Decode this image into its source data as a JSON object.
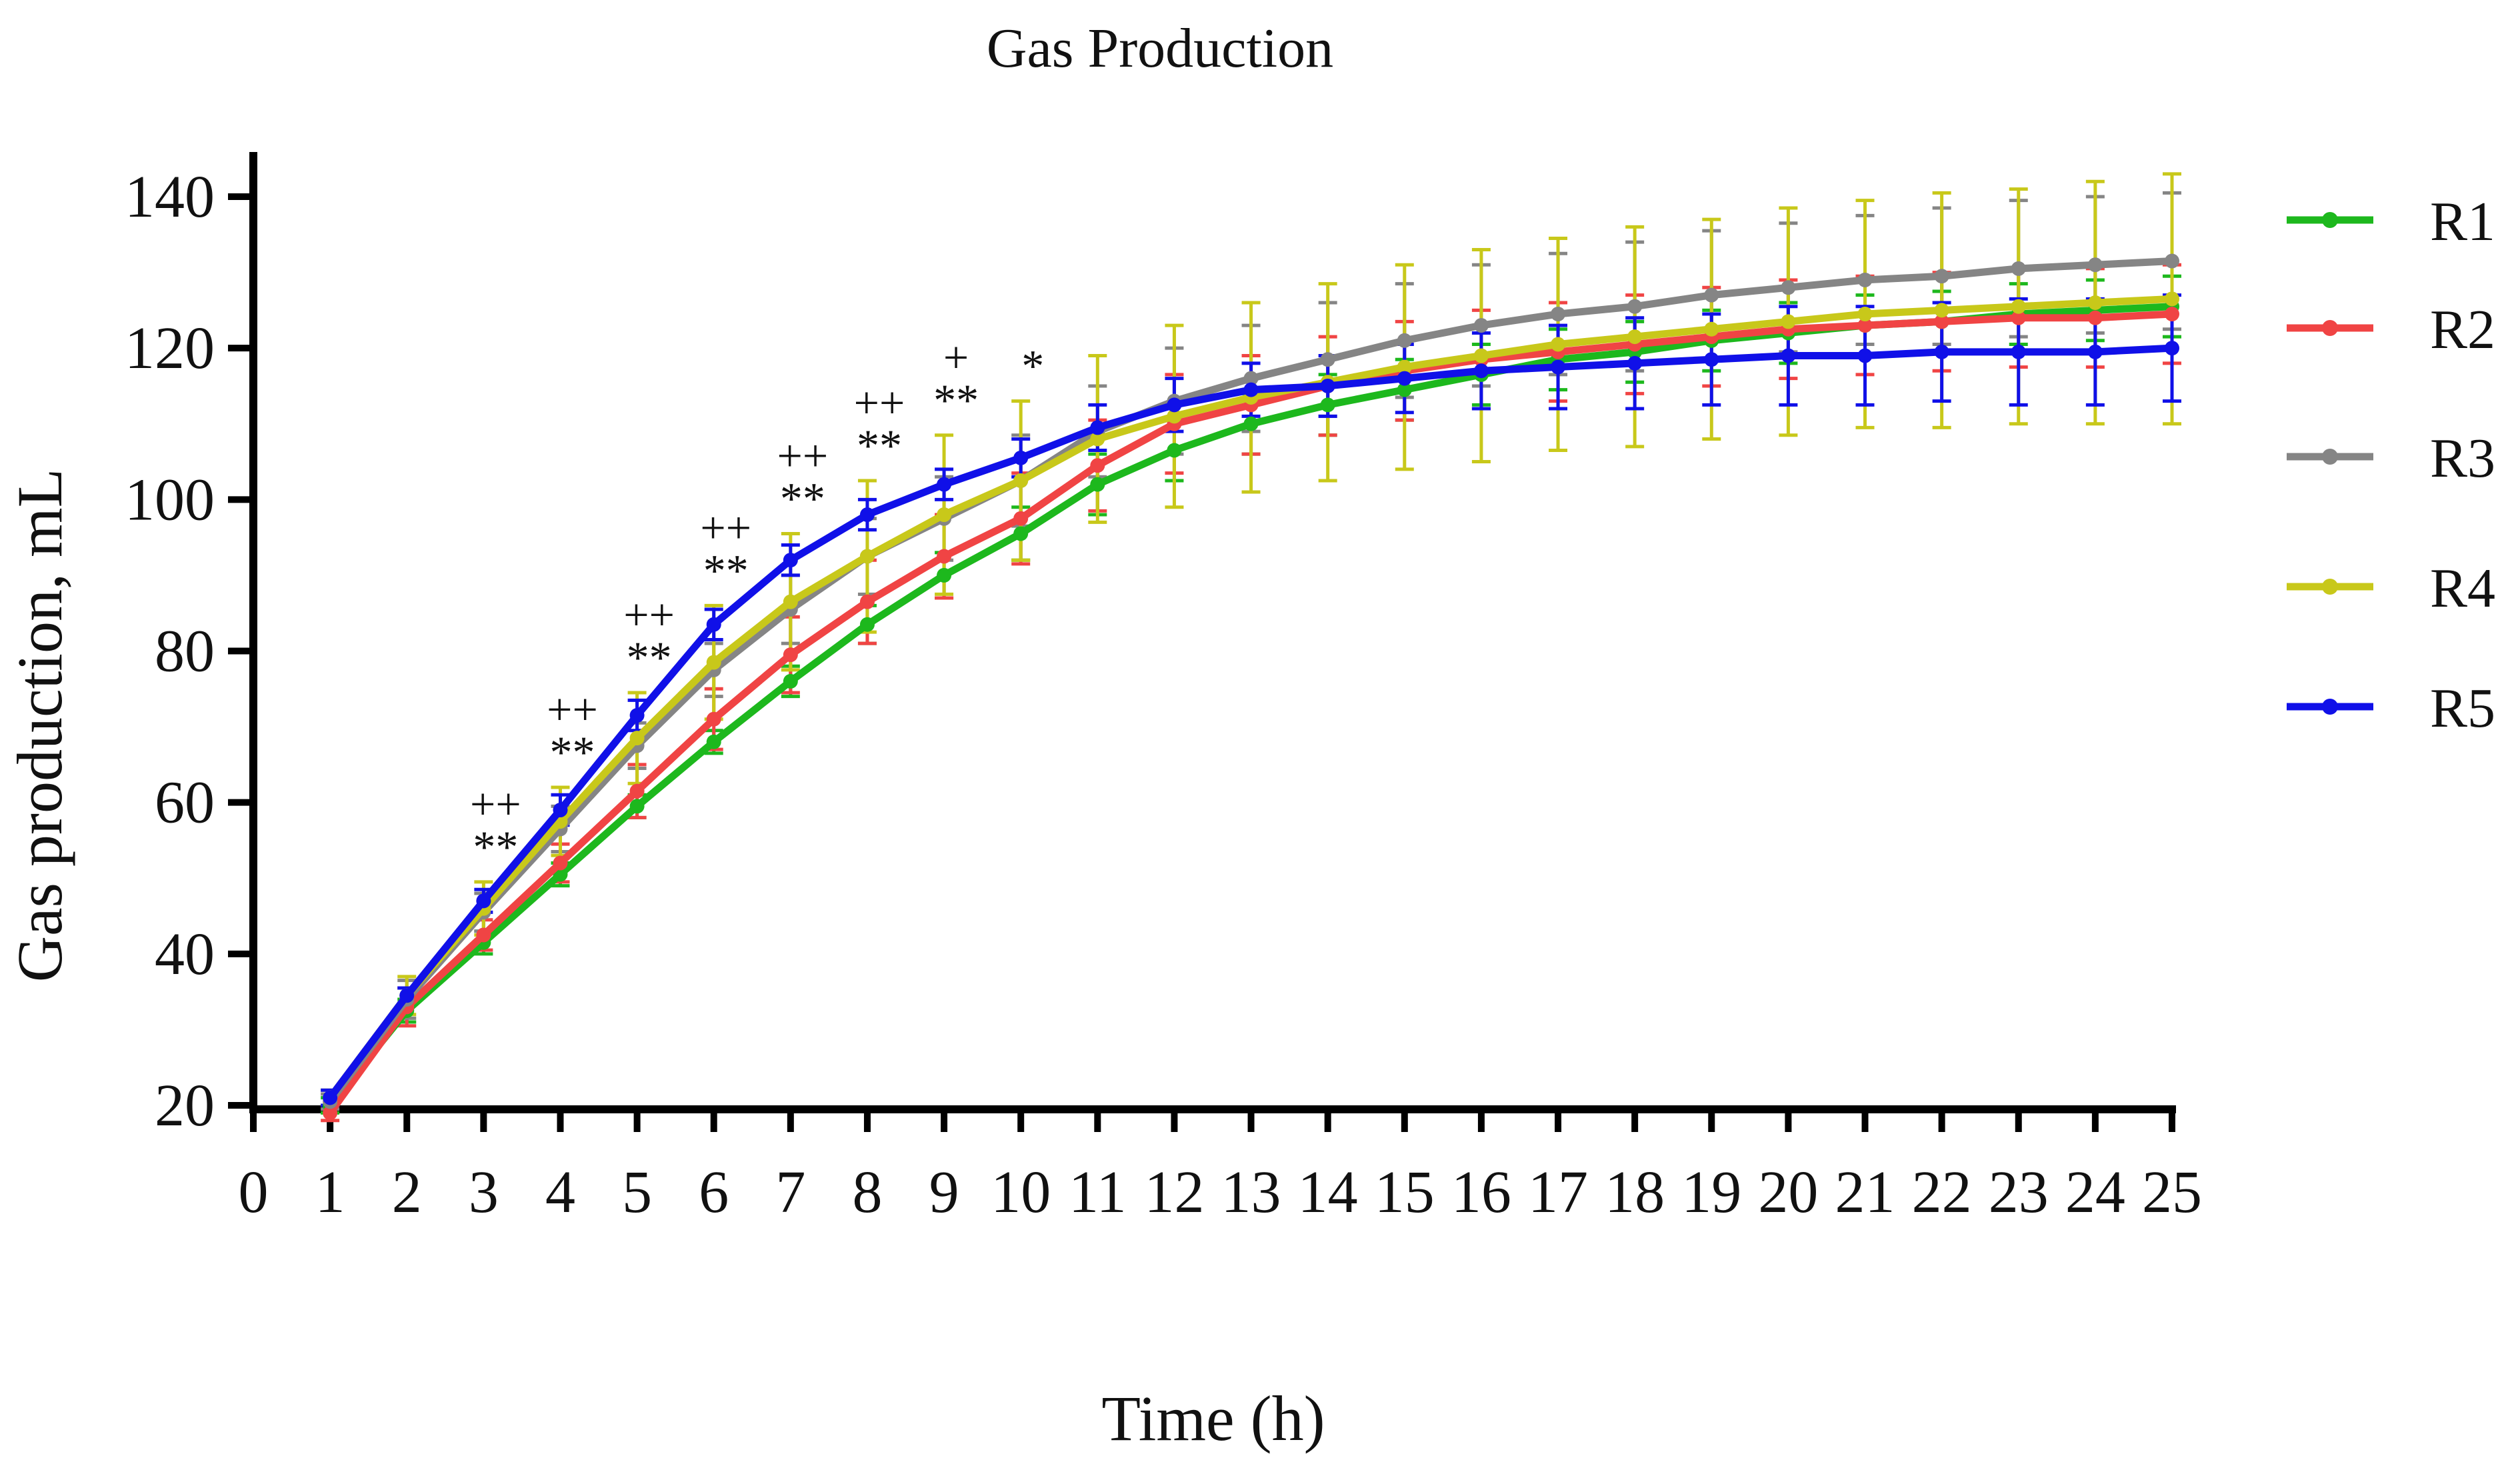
{
  "chart_data": {
    "type": "line",
    "title": "Gas Production",
    "xlabel": "Time (h)",
    "ylabel": "Gas production, mL",
    "xlim": [
      0,
      25
    ],
    "ylim": [
      20,
      140
    ],
    "xticks": [
      0,
      1,
      2,
      3,
      4,
      5,
      6,
      7,
      8,
      9,
      10,
      11,
      12,
      13,
      14,
      15,
      16,
      17,
      18,
      19,
      20,
      21,
      22,
      23,
      24,
      25
    ],
    "yticks": [
      20,
      40,
      60,
      80,
      100,
      120,
      140
    ],
    "x": [
      1,
      2,
      3,
      4,
      5,
      6,
      7,
      8,
      9,
      10,
      11,
      12,
      13,
      14,
      15,
      16,
      17,
      18,
      19,
      20,
      21,
      22,
      23,
      24,
      25
    ],
    "legend_position": "right",
    "series": [
      {
        "name": "R1",
        "color": "#1DB81D",
        "values": [
          20.0,
          32.5,
          41.5,
          50.5,
          59.5,
          68.0,
          76.0,
          83.5,
          90.0,
          95.5,
          102.0,
          106.5,
          110.0,
          112.5,
          114.5,
          116.5,
          118.5,
          119.5,
          121.0,
          122.0,
          123.0,
          123.5,
          124.5,
          125.0,
          125.5
        ],
        "errors": [
          1.0,
          1.5,
          1.5,
          1.5,
          1.5,
          1.5,
          2.0,
          2.5,
          3.0,
          3.5,
          4.0,
          4.0,
          4.0,
          4.0,
          4.0,
          4.0,
          4.0,
          4.0,
          4.0,
          4.0,
          4.0,
          4.0,
          4.0,
          4.0,
          4.0
        ]
      },
      {
        "name": "R2",
        "color": "#F04444",
        "values": [
          19.0,
          33.0,
          42.5,
          52.0,
          61.5,
          71.0,
          79.5,
          86.5,
          92.5,
          97.5,
          104.5,
          110.0,
          112.5,
          115.0,
          117.0,
          118.5,
          119.5,
          120.5,
          121.5,
          122.5,
          123.0,
          123.5,
          124.0,
          124.0,
          124.5
        ],
        "errors": [
          1.0,
          2.5,
          2.0,
          2.5,
          3.5,
          4.0,
          5.0,
          5.5,
          5.5,
          6.0,
          6.0,
          6.5,
          6.5,
          6.5,
          6.5,
          6.5,
          6.5,
          6.5,
          6.5,
          6.5,
          6.5,
          6.5,
          6.5,
          6.5,
          6.5
        ]
      },
      {
        "name": "R3",
        "color": "#858585",
        "values": [
          20.5,
          34.0,
          45.5,
          56.5,
          67.5,
          77.5,
          85.5,
          92.5,
          97.5,
          102.5,
          109.0,
          113.0,
          116.0,
          118.5,
          121.0,
          123.0,
          124.5,
          125.5,
          127.0,
          128.0,
          129.0,
          129.5,
          130.5,
          131.0,
          131.5
        ],
        "errors": [
          1.0,
          2.5,
          2.5,
          3.0,
          3.0,
          3.5,
          4.5,
          5.0,
          5.5,
          6.0,
          6.0,
          7.0,
          7.0,
          7.5,
          7.5,
          8.0,
          8.0,
          8.5,
          8.5,
          8.5,
          8.5,
          9.0,
          9.0,
          9.0,
          9.0
        ]
      },
      {
        "name": "R4",
        "color": "#C8C81A",
        "values": [
          21.0,
          34.5,
          46.0,
          57.5,
          68.5,
          78.5,
          86.5,
          92.5,
          98.0,
          102.5,
          108.0,
          111.0,
          113.5,
          115.5,
          117.5,
          119.0,
          120.5,
          121.5,
          122.5,
          123.5,
          124.5,
          125.0,
          125.5,
          126.0,
          126.5
        ],
        "errors": [
          1.0,
          2.5,
          3.5,
          4.5,
          6.0,
          7.5,
          9.0,
          10.0,
          10.5,
          10.5,
          11.0,
          12.0,
          12.5,
          13.0,
          13.5,
          14.0,
          14.0,
          14.5,
          14.5,
          15.0,
          15.0,
          15.5,
          15.5,
          16.0,
          16.5
        ]
      },
      {
        "name": "R5",
        "color": "#1010E8",
        "values": [
          21.0,
          34.5,
          47.0,
          59.0,
          71.5,
          83.5,
          92.0,
          98.0,
          102.0,
          105.5,
          109.5,
          112.5,
          114.5,
          115.0,
          116.0,
          117.0,
          117.5,
          118.0,
          118.5,
          119.0,
          119.0,
          119.5,
          119.5,
          119.5,
          120.0
        ],
        "errors": [
          1.0,
          1.0,
          1.5,
          2.0,
          2.0,
          2.0,
          2.0,
          2.0,
          2.0,
          2.5,
          3.0,
          3.5,
          3.5,
          4.0,
          4.5,
          5.0,
          5.5,
          6.0,
          6.0,
          6.5,
          6.5,
          6.5,
          7.0,
          7.0,
          7.0
        ]
      }
    ],
    "annotations": [
      {
        "x": 3,
        "lines": [
          "++",
          "**"
        ]
      },
      {
        "x": 4,
        "lines": [
          "++",
          "**"
        ]
      },
      {
        "x": 5,
        "lines": [
          "++",
          "**"
        ]
      },
      {
        "x": 6,
        "lines": [
          "++",
          "**"
        ]
      },
      {
        "x": 7,
        "lines": [
          "++",
          "**"
        ]
      },
      {
        "x": 8,
        "lines": [
          "++",
          "**"
        ]
      },
      {
        "x": 9,
        "lines": [
          "+",
          "**"
        ]
      },
      {
        "x": 10,
        "lines": [
          "*"
        ]
      }
    ]
  }
}
